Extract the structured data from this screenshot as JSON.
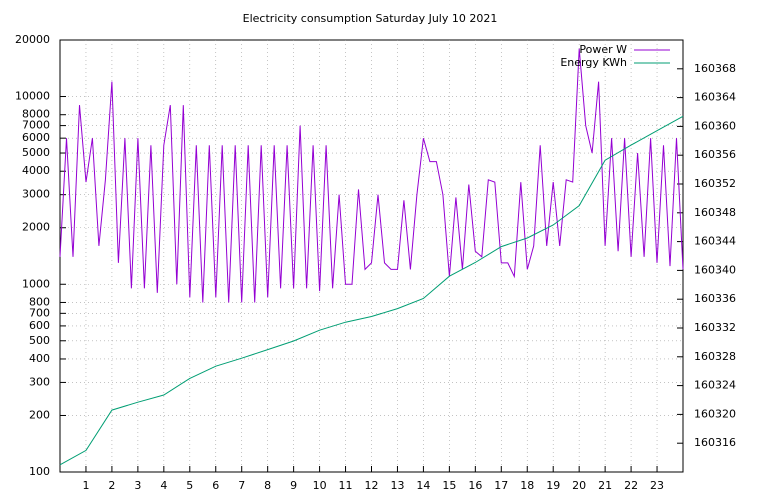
{
  "chart_data": {
    "type": "line",
    "title": "Electricity consumption Saturday July 10 2021",
    "x": [
      0,
      0.25,
      0.5,
      0.75,
      1,
      1.25,
      1.5,
      1.75,
      2,
      2.25,
      2.5,
      2.75,
      3,
      3.25,
      3.5,
      3.75,
      4,
      4.25,
      4.5,
      4.75,
      5,
      5.25,
      5.5,
      5.75,
      6,
      6.25,
      6.5,
      6.75,
      7,
      7.25,
      7.5,
      7.75,
      8,
      8.25,
      8.5,
      8.75,
      9,
      9.25,
      9.5,
      9.75,
      10,
      10.25,
      10.5,
      10.75,
      11,
      11.25,
      11.5,
      11.75,
      12,
      12.25,
      12.5,
      12.75,
      13,
      13.25,
      13.5,
      13.75,
      14,
      14.25,
      14.5,
      14.75,
      15,
      15.25,
      15.5,
      15.75,
      16,
      16.25,
      16.5,
      16.75,
      17,
      17.25,
      17.5,
      17.75,
      18,
      18.25,
      18.5,
      18.75,
      19,
      19.25,
      19.5,
      19.75,
      20,
      20.25,
      20.5,
      20.75,
      21,
      21.25,
      21.5,
      21.75,
      22,
      22.25,
      22.5,
      22.75,
      23,
      23.25,
      23.5,
      23.75,
      24
    ],
    "series": [
      {
        "name": "Power W",
        "color": "#9400d3",
        "axis": "y",
        "values": [
          1400,
          6000,
          1400,
          9000,
          3500,
          6000,
          1600,
          3600,
          12000,
          1300,
          6000,
          950,
          6000,
          950,
          5500,
          900,
          5500,
          9000,
          1000,
          9000,
          850,
          5500,
          800,
          5500,
          850,
          5500,
          800,
          5500,
          800,
          5500,
          800,
          5500,
          850,
          5500,
          950,
          5500,
          950,
          7000,
          950,
          5500,
          920,
          5500,
          950,
          3000,
          1000,
          1000,
          3200,
          1200,
          1300,
          3000,
          1300,
          1200,
          1200,
          2800,
          1200,
          3000,
          6000,
          4500,
          4500,
          3000,
          1100,
          2900,
          1200,
          3400,
          1500,
          1400,
          3600,
          3500,
          1300,
          1300,
          1100,
          3500,
          1200,
          1600,
          5500,
          1600,
          3500,
          1600,
          3600,
          3500,
          18000,
          7000,
          5000,
          12000,
          1600,
          6000,
          1500,
          6000,
          1400,
          5000,
          1400,
          6000,
          1300,
          5500,
          1250,
          6000,
          1200
        ]
      },
      {
        "name": "Energy KWh",
        "color": "#009e73",
        "axis": "y2",
        "x": [
          0,
          1,
          2,
          3,
          4,
          5,
          6,
          7,
          8,
          9,
          10,
          11,
          12,
          13,
          14,
          15,
          16,
          17,
          18,
          19,
          20,
          21,
          22,
          23,
          24
        ],
        "values": [
          160313,
          160315,
          160320.6,
          160321.7,
          160322.7,
          160325,
          160326.7,
          160327.8,
          160329,
          160330.2,
          160331.7,
          160332.8,
          160333.6,
          160334.7,
          160336.1,
          160339.2,
          160341.1,
          160343.3,
          160344.5,
          160346.3,
          160349,
          160355.3,
          160357.4,
          160359.4,
          160361.4
        ]
      }
    ],
    "xlim": [
      0,
      24
    ],
    "xticks": [
      1,
      2,
      3,
      4,
      5,
      6,
      7,
      8,
      9,
      10,
      11,
      12,
      13,
      14,
      15,
      16,
      17,
      18,
      19,
      20,
      21,
      22,
      23
    ],
    "ylim": [
      100,
      20000
    ],
    "ylog": true,
    "yticks": [
      100,
      200,
      300,
      400,
      500,
      600,
      700,
      800,
      1000,
      2000,
      3000,
      4000,
      5000,
      6000,
      7000,
      8000,
      10000,
      20000
    ],
    "y2lim": [
      160312,
      160372
    ],
    "y2ticks": [
      160316,
      160320,
      160324,
      160328,
      160332,
      160336,
      160340,
      160344,
      160348,
      160352,
      160356,
      160360,
      160364,
      160368
    ],
    "grid": true,
    "legend": "top-right"
  }
}
